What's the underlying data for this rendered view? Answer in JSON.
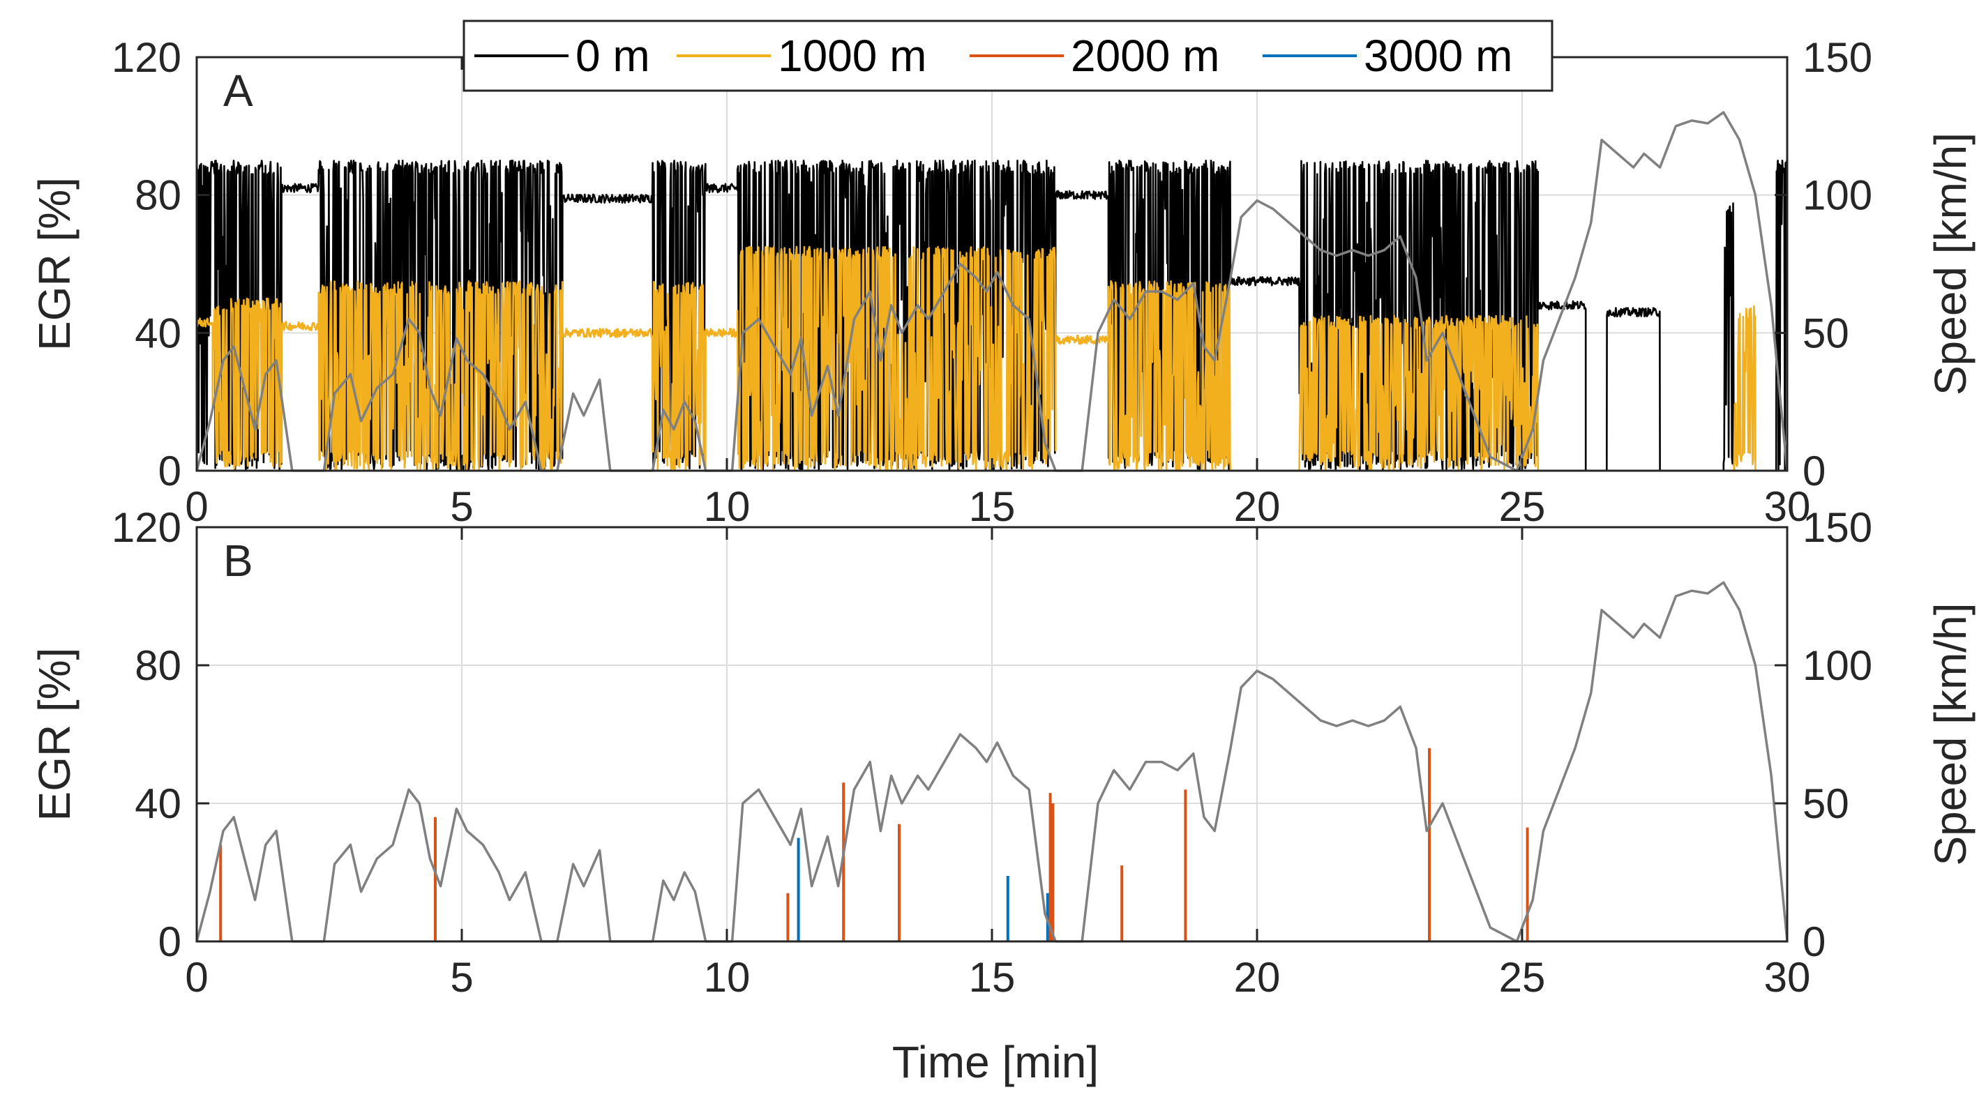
{
  "chart_data": [
    {
      "type": "line",
      "panel_label": "A",
      "xlabel": "",
      "ylabel": "EGR [%]",
      "ylabel_right": "Speed [km/h]",
      "xlim": [
        0,
        30
      ],
      "ylim": [
        0,
        120
      ],
      "ylim_right": [
        0,
        150
      ],
      "xticks": [
        0,
        5,
        10,
        15,
        20,
        25,
        30
      ],
      "yticks": [
        0,
        40,
        80,
        120
      ],
      "yticks_right": [
        0,
        50,
        100,
        150
      ],
      "grid": true,
      "legend_position": "top",
      "series": [
        {
          "name": "0 m",
          "color": "#000000",
          "axis": "left",
          "style": "noisy-switching",
          "segments": [
            {
              "x0": 0.0,
              "x1": 0.35,
              "mode": "switch",
              "low": 0,
              "high": 90,
              "ref": 78
            },
            {
              "x0": 0.35,
              "x1": 1.6,
              "mode": "switch",
              "low": 0,
              "high": 90,
              "ref": 80
            },
            {
              "x0": 1.6,
              "x1": 2.3,
              "mode": "flat",
              "value": 82
            },
            {
              "x0": 2.3,
              "x1": 6.9,
              "mode": "switch",
              "low": 0,
              "high": 90,
              "ref": 80
            },
            {
              "x0": 6.9,
              "x1": 8.6,
              "mode": "flat",
              "value": 79
            },
            {
              "x0": 8.6,
              "x1": 9.6,
              "mode": "switch",
              "low": 0,
              "high": 90,
              "ref": 80
            },
            {
              "x0": 9.6,
              "x1": 10.2,
              "mode": "flat",
              "value": 82
            },
            {
              "x0": 10.2,
              "x1": 16.2,
              "mode": "switch",
              "low": 0,
              "high": 90,
              "ref": 80
            },
            {
              "x0": 16.2,
              "x1": 17.2,
              "mode": "flat",
              "value": 80
            },
            {
              "x0": 17.2,
              "x1": 19.5,
              "mode": "switch",
              "low": 0,
              "high": 90,
              "ref": 78
            },
            {
              "x0": 19.5,
              "x1": 20.8,
              "mode": "flat",
              "value": 55
            },
            {
              "x0": 20.8,
              "x1": 25.3,
              "mode": "switch",
              "low": 0,
              "high": 90,
              "ref": 65
            },
            {
              "x0": 25.3,
              "x1": 26.2,
              "mode": "flat",
              "value": 48
            },
            {
              "x0": 26.2,
              "x1": 26.6,
              "mode": "flat",
              "value": 0
            },
            {
              "x0": 26.6,
              "x1": 27.6,
              "mode": "flat",
              "value": 46
            },
            {
              "x0": 27.6,
              "x1": 28.8,
              "mode": "flat",
              "value": 0
            },
            {
              "x0": 28.8,
              "x1": 29.0,
              "mode": "switch",
              "low": 0,
              "high": 78,
              "ref": 60
            },
            {
              "x0": 29.0,
              "x1": 29.8,
              "mode": "flat",
              "value": 0
            },
            {
              "x0": 29.8,
              "x1": 30.0,
              "mode": "switch",
              "low": 0,
              "high": 90,
              "ref": 85
            }
          ]
        },
        {
          "name": "1000 m",
          "color": "#f2b01e",
          "axis": "left",
          "style": "noisy-switching",
          "segments": [
            {
              "x0": 0.0,
              "x1": 0.3,
              "mode": "flat",
              "value": 43
            },
            {
              "x0": 0.3,
              "x1": 1.6,
              "mode": "switch",
              "low": 0,
              "high": 50,
              "ref": 40
            },
            {
              "x0": 1.6,
              "x1": 2.3,
              "mode": "flat",
              "value": 42
            },
            {
              "x0": 2.3,
              "x1": 6.9,
              "mode": "switch",
              "low": 0,
              "high": 55,
              "ref": 40
            },
            {
              "x0": 6.9,
              "x1": 8.6,
              "mode": "flat",
              "value": 40
            },
            {
              "x0": 8.6,
              "x1": 9.6,
              "mode": "switch",
              "low": 0,
              "high": 55,
              "ref": 40
            },
            {
              "x0": 9.6,
              "x1": 10.2,
              "mode": "flat",
              "value": 40
            },
            {
              "x0": 10.2,
              "x1": 16.2,
              "mode": "switch",
              "low": 0,
              "high": 65,
              "ref": 40
            },
            {
              "x0": 16.2,
              "x1": 17.2,
              "mode": "flat",
              "value": 38
            },
            {
              "x0": 17.2,
              "x1": 19.5,
              "mode": "switch",
              "low": 0,
              "high": 55,
              "ref": 30
            },
            {
              "x0": 19.5,
              "x1": 20.8,
              "mode": "flat",
              "value": 0
            },
            {
              "x0": 20.8,
              "x1": 25.3,
              "mode": "switch",
              "low": 0,
              "high": 45,
              "ref": 25
            },
            {
              "x0": 25.3,
              "x1": 29.0,
              "mode": "flat",
              "value": 0
            },
            {
              "x0": 29.0,
              "x1": 29.4,
              "mode": "switch",
              "low": 0,
              "high": 48,
              "ref": 40
            },
            {
              "x0": 29.4,
              "x1": 30.0,
              "mode": "flat",
              "value": 0
            }
          ]
        },
        {
          "name": "2000 m",
          "color": "#d95319",
          "axis": "left",
          "style": "none-in-panel",
          "segments": []
        },
        {
          "name": "3000 m",
          "color": "#0072bd",
          "axis": "left",
          "style": "none-in-panel",
          "segments": []
        },
        {
          "name": "Speed",
          "color": "#808080",
          "axis": "right",
          "style": "smooth",
          "x": [
            0,
            0.25,
            0.5,
            0.7,
            0.9,
            1.1,
            1.3,
            1.5,
            1.8,
            2.4,
            2.6,
            2.9,
            3.1,
            3.4,
            3.7,
            4.0,
            4.2,
            4.4,
            4.6,
            4.9,
            5.1,
            5.4,
            5.7,
            5.9,
            6.2,
            6.5,
            6.8,
            7.1,
            7.3,
            7.6,
            7.8,
            8.6,
            8.8,
            9.0,
            9.2,
            9.4,
            9.6,
            10.1,
            10.3,
            10.6,
            10.9,
            11.2,
            11.4,
            11.6,
            11.9,
            12.1,
            12.4,
            12.7,
            12.9,
            13.1,
            13.3,
            13.6,
            13.8,
            14.1,
            14.4,
            14.7,
            14.9,
            15.1,
            15.4,
            15.7,
            16.0,
            16.2,
            16.4,
            16.7,
            17.0,
            17.3,
            17.6,
            17.9,
            18.2,
            18.5,
            18.8,
            19.0,
            19.2,
            19.5,
            19.7,
            20.0,
            20.3,
            20.6,
            20.9,
            21.2,
            21.5,
            21.8,
            22.1,
            22.4,
            22.7,
            23.0,
            23.2,
            23.5,
            23.8,
            24.1,
            24.4,
            24.9,
            25.2,
            25.4,
            25.7,
            26.0,
            26.3,
            26.5,
            26.8,
            27.1,
            27.3,
            27.6,
            27.9,
            28.2,
            28.5,
            28.8,
            29.1,
            29.4,
            29.7,
            30.0
          ],
          "values": [
            0,
            18,
            40,
            45,
            30,
            15,
            35,
            40,
            0,
            0,
            28,
            35,
            18,
            30,
            35,
            55,
            50,
            30,
            20,
            48,
            40,
            35,
            25,
            15,
            25,
            0,
            0,
            28,
            20,
            33,
            0,
            0,
            22,
            15,
            25,
            18,
            0,
            0,
            50,
            55,
            45,
            35,
            48,
            20,
            38,
            20,
            55,
            65,
            40,
            60,
            50,
            60,
            55,
            65,
            75,
            70,
            65,
            72,
            60,
            55,
            10,
            0,
            0,
            0,
            50,
            62,
            55,
            65,
            65,
            62,
            68,
            45,
            40,
            70,
            92,
            98,
            95,
            90,
            85,
            80,
            78,
            80,
            78,
            80,
            85,
            70,
            40,
            50,
            35,
            20,
            5,
            0,
            15,
            40,
            55,
            70,
            90,
            120,
            115,
            110,
            115,
            110,
            125,
            127,
            126,
            130,
            120,
            100,
            60,
            0
          ]
        }
      ]
    },
    {
      "type": "line",
      "panel_label": "B",
      "xlabel": "Time [min]",
      "ylabel": "EGR [%]",
      "ylabel_right": "Speed [km/h]",
      "xlim": [
        0,
        30
      ],
      "ylim": [
        0,
        120
      ],
      "ylim_right": [
        0,
        150
      ],
      "xticks": [
        0,
        5,
        10,
        15,
        20,
        25,
        30
      ],
      "yticks": [
        0,
        40,
        80,
        120
      ],
      "yticks_right": [
        0,
        50,
        100,
        150
      ],
      "grid": true,
      "series": [
        {
          "name": "2000 m",
          "color": "#d95319",
          "axis": "left",
          "style": "spikes",
          "spikes": [
            {
              "x": 0.45,
              "value": 28
            },
            {
              "x": 4.5,
              "value": 36
            },
            {
              "x": 11.15,
              "value": 14
            },
            {
              "x": 12.2,
              "value": 46
            },
            {
              "x": 13.25,
              "value": 34
            },
            {
              "x": 16.1,
              "value": 43
            },
            {
              "x": 16.15,
              "value": 40
            },
            {
              "x": 17.45,
              "value": 22
            },
            {
              "x": 18.65,
              "value": 44
            },
            {
              "x": 23.25,
              "value": 56
            },
            {
              "x": 25.1,
              "value": 33
            }
          ]
        },
        {
          "name": "3000 m",
          "color": "#0072bd",
          "axis": "left",
          "style": "spikes",
          "spikes": [
            {
              "x": 11.35,
              "value": 30
            },
            {
              "x": 15.3,
              "value": 19
            },
            {
              "x": 16.05,
              "value": 14
            }
          ]
        },
        {
          "name": "Speed",
          "color": "#808080",
          "axis": "right",
          "style": "smooth",
          "x": [
            0,
            0.25,
            0.5,
            0.7,
            0.9,
            1.1,
            1.3,
            1.5,
            1.8,
            2.4,
            2.6,
            2.9,
            3.1,
            3.4,
            3.7,
            4.0,
            4.2,
            4.4,
            4.6,
            4.9,
            5.1,
            5.4,
            5.7,
            5.9,
            6.2,
            6.5,
            6.8,
            7.1,
            7.3,
            7.6,
            7.8,
            8.6,
            8.8,
            9.0,
            9.2,
            9.4,
            9.6,
            10.1,
            10.3,
            10.6,
            10.9,
            11.2,
            11.4,
            11.6,
            11.9,
            12.1,
            12.4,
            12.7,
            12.9,
            13.1,
            13.3,
            13.6,
            13.8,
            14.1,
            14.4,
            14.7,
            14.9,
            15.1,
            15.4,
            15.7,
            16.0,
            16.2,
            16.4,
            16.7,
            17.0,
            17.3,
            17.6,
            17.9,
            18.2,
            18.5,
            18.8,
            19.0,
            19.2,
            19.5,
            19.7,
            20.0,
            20.3,
            20.6,
            20.9,
            21.2,
            21.5,
            21.8,
            22.1,
            22.4,
            22.7,
            23.0,
            23.2,
            23.5,
            23.8,
            24.1,
            24.4,
            24.9,
            25.2,
            25.4,
            25.7,
            26.0,
            26.3,
            26.5,
            26.8,
            27.1,
            27.3,
            27.6,
            27.9,
            28.2,
            28.5,
            28.8,
            29.1,
            29.4,
            29.7,
            30.0
          ],
          "values": [
            0,
            18,
            40,
            45,
            30,
            15,
            35,
            40,
            0,
            0,
            28,
            35,
            18,
            30,
            35,
            55,
            50,
            30,
            20,
            48,
            40,
            35,
            25,
            15,
            25,
            0,
            0,
            28,
            20,
            33,
            0,
            0,
            22,
            15,
            25,
            18,
            0,
            0,
            50,
            55,
            45,
            35,
            48,
            20,
            38,
            20,
            55,
            65,
            40,
            60,
            50,
            60,
            55,
            65,
            75,
            70,
            65,
            72,
            60,
            55,
            10,
            0,
            0,
            0,
            50,
            62,
            55,
            65,
            65,
            62,
            68,
            45,
            40,
            70,
            92,
            98,
            95,
            90,
            85,
            80,
            78,
            80,
            78,
            80,
            85,
            70,
            40,
            50,
            35,
            20,
            5,
            0,
            15,
            40,
            55,
            70,
            90,
            120,
            115,
            110,
            115,
            110,
            125,
            127,
            126,
            130,
            120,
            100,
            60,
            0
          ]
        }
      ]
    }
  ],
  "legend": {
    "entries": [
      {
        "name": "0 m",
        "color": "#000000"
      },
      {
        "name": "1000 m",
        "color": "#f2b01e"
      },
      {
        "name": "2000 m",
        "color": "#d95319"
      },
      {
        "name": "3000 m",
        "color": "#0072bd"
      }
    ]
  }
}
